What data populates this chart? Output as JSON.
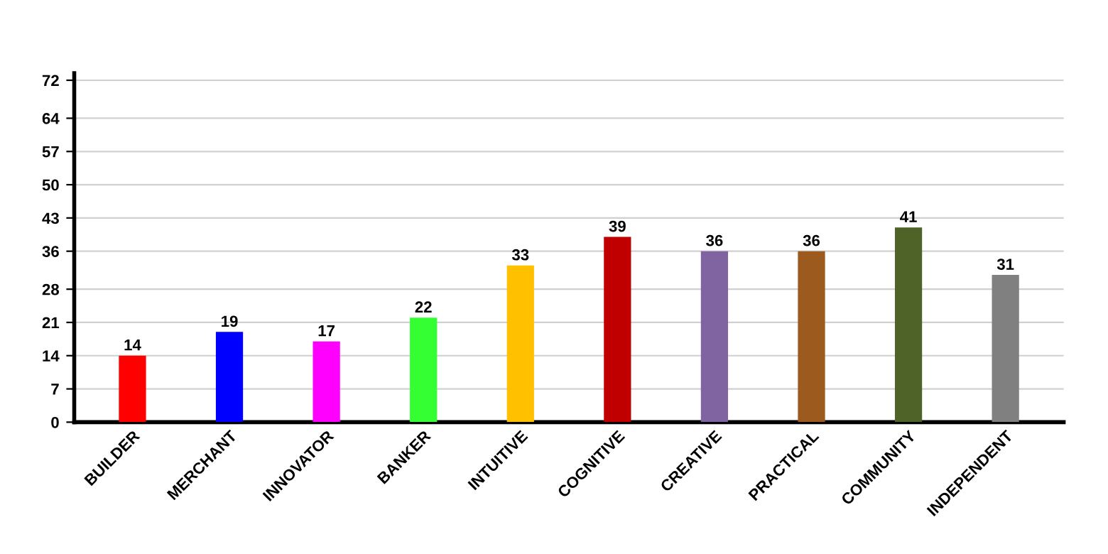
{
  "chart_data": {
    "type": "bar",
    "categories": [
      "BUILDER",
      "MERCHANT",
      "INNOVATOR",
      "BANKER",
      "INTUITIVE",
      "COGNITIVE",
      "CREATIVE",
      "PRACTICAL",
      "COMMUNITY",
      "INDEPENDENT"
    ],
    "values": [
      14,
      19,
      17,
      22,
      33,
      39,
      36,
      36,
      41,
      31
    ],
    "colors": [
      "#ff0000",
      "#0000ff",
      "#ff00ff",
      "#33ff33",
      "#ffc000",
      "#c00000",
      "#8064a2",
      "#9c5a1e",
      "#4f6228",
      "#808080"
    ],
    "ylim": [
      0,
      73.5
    ],
    "yticks": [
      0,
      7,
      14,
      21,
      28,
      36,
      43,
      50,
      57,
      64,
      72
    ],
    "grid": "y",
    "data_labels": true
  }
}
